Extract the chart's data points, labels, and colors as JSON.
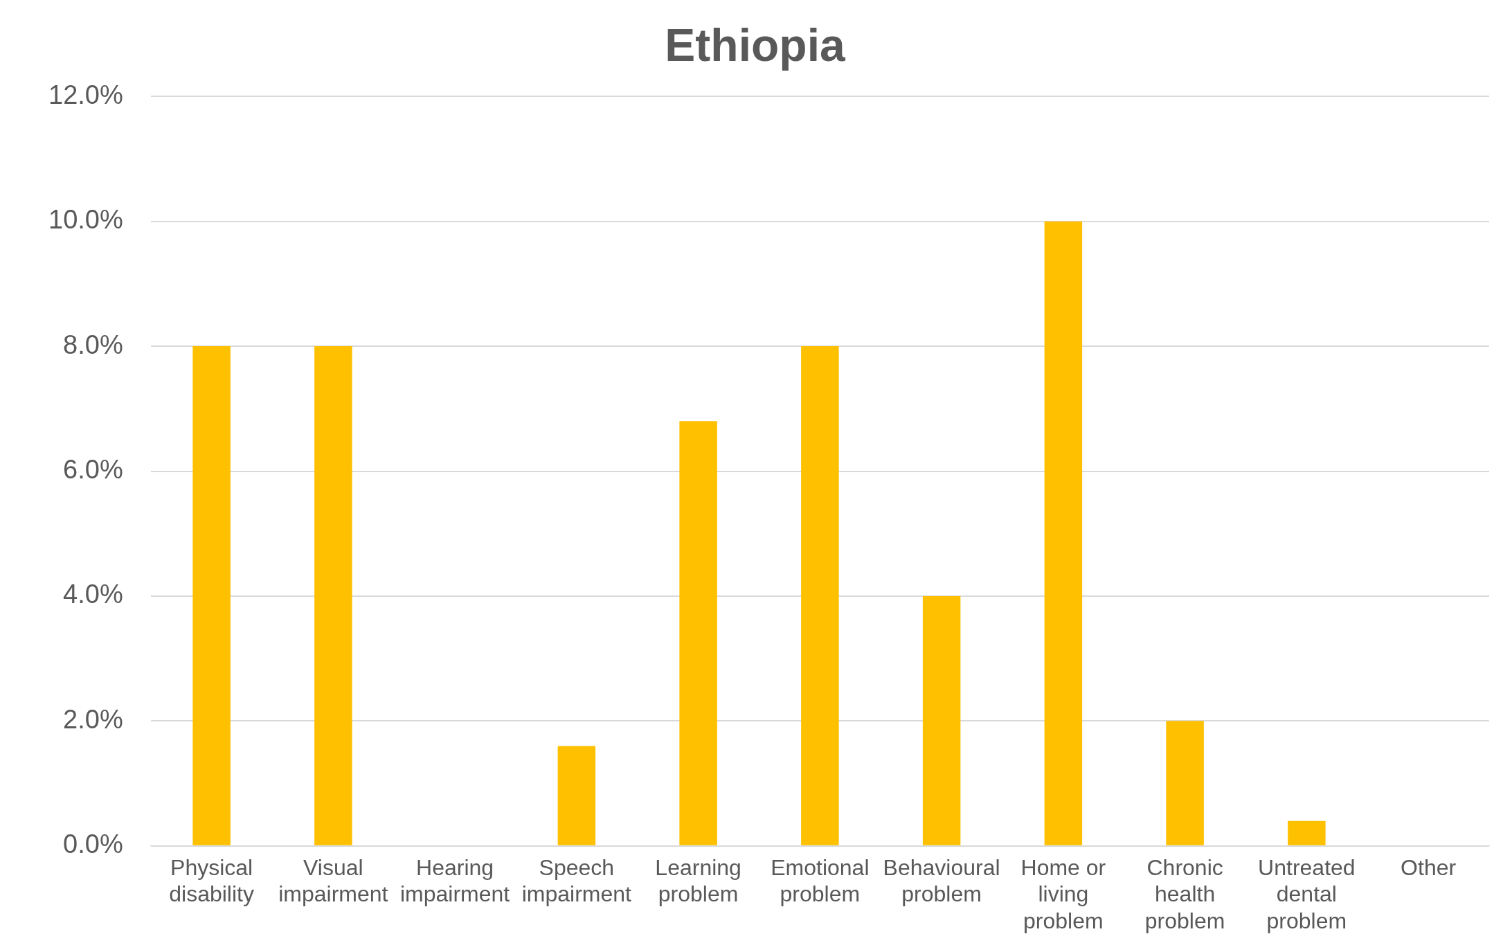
{
  "chart_data": {
    "type": "bar",
    "title": "Ethiopia",
    "categories": [
      "Physical disability",
      "Visual impairment",
      "Hearing impairment",
      "Speech impairment",
      "Learning problem",
      "Emotional problem",
      "Behavioural problem",
      "Home or living problem",
      "Chronic health problem",
      "Untreated dental problem",
      "Other"
    ],
    "values": [
      8,
      8,
      0,
      1.6,
      6.8,
      8,
      4,
      10,
      2,
      0.4,
      0
    ],
    "color": "#ffc000",
    "ylim": [
      0,
      12
    ],
    "yticks": [
      {
        "value": 0,
        "label": "0.0%"
      },
      {
        "value": 2,
        "label": "2.0%"
      },
      {
        "value": 4,
        "label": "4.0%"
      },
      {
        "value": 6,
        "label": "6.0%"
      },
      {
        "value": 8,
        "label": "8.0%"
      },
      {
        "value": 10,
        "label": "10.0%"
      },
      {
        "value": 12,
        "label": "12.0%"
      }
    ],
    "grid": "y",
    "legend": false
  }
}
